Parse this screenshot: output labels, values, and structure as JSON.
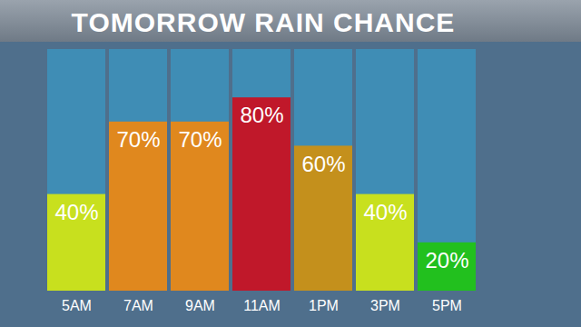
{
  "chart_data": {
    "type": "bar",
    "title": "TOMORROW RAIN CHANCE",
    "categories": [
      "5AM",
      "7AM",
      "9AM",
      "11AM",
      "1PM",
      "3PM",
      "5PM"
    ],
    "values": [
      40,
      70,
      70,
      80,
      60,
      40,
      20
    ],
    "value_labels": [
      "40%",
      "70%",
      "70%",
      "80%",
      "60%",
      "40%",
      "20%"
    ],
    "colors": [
      "#c8e01e",
      "#e0881e",
      "#e0881e",
      "#c0182a",
      "#c4901c",
      "#c8e01e",
      "#22c01e"
    ],
    "ylim": [
      0,
      100
    ],
    "data_labels": true,
    "tick_labels": "x"
  }
}
